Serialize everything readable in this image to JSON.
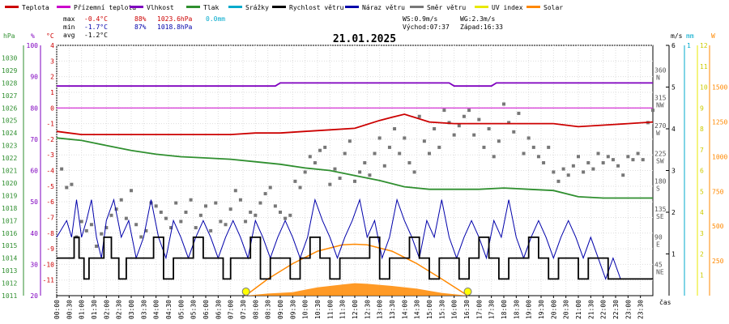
{
  "chart_data": {
    "type": "line",
    "title": "21.01.2025",
    "legend": [
      {
        "label": "Teplota",
        "color": "#cc0000"
      },
      {
        "label": "Přízemní teplota",
        "color": "#cc00cc"
      },
      {
        "label": "Vlhkost",
        "color": "#7f00bf"
      },
      {
        "label": "Tlak",
        "color": "#2f8f2f"
      },
      {
        "label": "Srážky",
        "color": "#00aacc"
      },
      {
        "label": "Rychlost větru",
        "color": "#000000"
      },
      {
        "label": "Náraz větru",
        "color": "#0000aa"
      },
      {
        "label": "Směr větru",
        "color": "#777777"
      },
      {
        "label": "UV index",
        "color": "#e8e800"
      },
      {
        "label": "Solar",
        "color": "#ff8800"
      }
    ],
    "stats": {
      "max": {
        "label": "max",
        "temp": "-0.4°C",
        "hum": "88%",
        "press": "1023.6hPa",
        "rain": "0.0mm"
      },
      "min": {
        "label": "min",
        "temp": "-1.7°C",
        "hum": "87%",
        "press": "1018.8hPa"
      },
      "avg": {
        "label": "avg",
        "temp": "-1.2°C"
      },
      "ws": "WS:0.9m/s",
      "wg": "WG:2.3m/s",
      "sunrise": "Východ:07:37",
      "sunset": "Západ:16:33"
    },
    "axis_units": {
      "hpa": "hPa",
      "pct": "%",
      "degc": "°C",
      "ms": "m/s",
      "mm": "mm",
      "w": "W",
      "time": "čas"
    },
    "axes": {
      "pressure": {
        "range": [
          1011,
          1031
        ],
        "ticks": [
          "1011",
          "1012",
          "1013",
          "1014",
          "1015",
          "1016",
          "1017",
          "1018",
          "1019",
          "1020",
          "1021",
          "1022",
          "1023",
          "1024",
          "1025",
          "1026",
          "1027",
          "1028",
          "1029",
          "1030"
        ]
      },
      "humidity": {
        "range": [
          20,
          100
        ],
        "ticks": [
          "20",
          "30",
          "40",
          "50",
          "60",
          "70",
          "80",
          "90",
          "100"
        ]
      },
      "temperature": {
        "range": [
          -12,
          4
        ],
        "ticks": [
          "-11",
          "-10",
          "-9",
          "-8",
          "-7",
          "-6",
          "-5",
          "-4",
          "-3",
          "-2",
          "-1",
          "0",
          "1",
          "2",
          "3",
          "4"
        ]
      },
      "wind_dir": {
        "ticks": [
          {
            "deg": "45",
            "dir": "NE",
            "v": 45
          },
          {
            "deg": "90",
            "dir": "E",
            "v": 90
          },
          {
            "deg": "135",
            "dir": "SE",
            "v": 135
          },
          {
            "deg": "180",
            "dir": "S",
            "v": 180
          },
          {
            "deg": "225",
            "dir": "SW",
            "v": 225
          },
          {
            "deg": "270",
            "dir": "W",
            "v": 270
          },
          {
            "deg": "315",
            "dir": "NW",
            "v": 315
          },
          {
            "deg": "360",
            "dir": "N",
            "v": 360
          }
        ]
      },
      "wind_speed": {
        "range": [
          0,
          6
        ],
        "ticks": [
          "1",
          "2",
          "3",
          "4",
          "5",
          "6"
        ]
      },
      "rain": {
        "ticks": [
          "1"
        ]
      },
      "uv": {
        "range": [
          0,
          12
        ],
        "ticks": [
          "1",
          "2",
          "3",
          "4",
          "5",
          "6",
          "7",
          "8",
          "9",
          "10",
          "11",
          "12"
        ]
      },
      "solar": {
        "range": [
          0,
          1800
        ],
        "ticks": [
          "250",
          "500",
          "750",
          "1000",
          "1250",
          "1500"
        ]
      }
    },
    "x_ticks": [
      "00:00",
      "00:30",
      "01:00",
      "01:30",
      "02:00",
      "02:30",
      "03:00",
      "03:30",
      "04:00",
      "04:30",
      "05:00",
      "05:30",
      "06:00",
      "06:30",
      "07:00",
      "07:30",
      "08:00",
      "08:30",
      "09:00",
      "09:30",
      "10:00",
      "10:30",
      "11:00",
      "11:30",
      "12:00",
      "12:30",
      "13:00",
      "13:30",
      "14:00",
      "14:30",
      "15:00",
      "15:30",
      "16:00",
      "16:30",
      "17:00",
      "17:30",
      "18:00",
      "18:30",
      "19:00",
      "19:30",
      "20:00",
      "20:30",
      "21:00",
      "21:30",
      "22:00",
      "22:30",
      "23:00",
      "23:30"
    ],
    "series": [
      {
        "name": "Teplota",
        "color": "#cc0000",
        "axis": "temperature",
        "x": [
          0,
          0.5,
          1,
          2,
          3,
          4,
          5,
          6,
          7,
          8,
          9,
          10,
          11,
          12,
          13,
          13.5,
          14,
          15,
          16,
          17,
          18,
          19,
          20,
          21,
          22,
          23,
          24
        ],
        "y": [
          -1.5,
          -1.6,
          -1.7,
          -1.7,
          -1.7,
          -1.7,
          -1.7,
          -1.7,
          -1.7,
          -1.6,
          -1.6,
          -1.5,
          -1.4,
          -1.3,
          -0.8,
          -0.6,
          -0.4,
          -0.9,
          -1.0,
          -1.0,
          -1.0,
          -1.0,
          -1.0,
          -1.2,
          -1.1,
          -1.0,
          -0.9
        ]
      },
      {
        "name": "Vlhkost",
        "color": "#7f00bf",
        "axis": "humidity",
        "x": [
          0,
          8.8,
          9.0,
          15.8,
          16,
          17.5,
          17.7,
          24
        ],
        "y": [
          87,
          87,
          88,
          88,
          87,
          87,
          88,
          88
        ]
      },
      {
        "name": "Tlak",
        "color": "#2f8f2f",
        "axis": "pressure",
        "x": [
          0,
          1,
          2,
          3,
          4,
          5,
          6,
          7,
          8,
          9,
          10,
          11,
          12,
          13,
          14,
          15,
          16,
          17,
          18,
          19,
          20,
          21,
          22,
          23,
          24
        ],
        "y": [
          1023.6,
          1023.4,
          1023.0,
          1022.6,
          1022.3,
          1022.1,
          1022.0,
          1021.9,
          1021.7,
          1021.5,
          1021.2,
          1021.0,
          1020.6,
          1020.2,
          1019.7,
          1019.5,
          1019.5,
          1019.5,
          1019.6,
          1019.5,
          1019.4,
          1018.9,
          1018.8,
          1018.8,
          1018.8
        ]
      },
      {
        "name": "Přízemní teplota",
        "color": "#cc00cc",
        "axis": "temperature",
        "x": [
          0,
          24
        ],
        "y": [
          0,
          0
        ]
      }
    ],
    "wind_dir_points": [
      [
        0.2,
        205
      ],
      [
        0.4,
        175
      ],
      [
        0.6,
        180
      ],
      [
        0.8,
        95
      ],
      [
        1.0,
        120
      ],
      [
        1.2,
        105
      ],
      [
        1.4,
        115
      ],
      [
        1.6,
        80
      ],
      [
        1.8,
        100
      ],
      [
        2.0,
        110
      ],
      [
        2.2,
        130
      ],
      [
        2.4,
        140
      ],
      [
        2.6,
        155
      ],
      [
        2.8,
        125
      ],
      [
        3.0,
        170
      ],
      [
        3.2,
        115
      ],
      [
        3.4,
        95
      ],
      [
        3.6,
        105
      ],
      [
        3.8,
        150
      ],
      [
        4.0,
        145
      ],
      [
        4.2,
        135
      ],
      [
        4.4,
        125
      ],
      [
        4.6,
        110
      ],
      [
        4.8,
        150
      ],
      [
        5.0,
        120
      ],
      [
        5.2,
        135
      ],
      [
        5.4,
        155
      ],
      [
        5.6,
        110
      ],
      [
        5.8,
        130
      ],
      [
        6.0,
        145
      ],
      [
        6.2,
        105
      ],
      [
        6.4,
        150
      ],
      [
        6.6,
        120
      ],
      [
        6.8,
        115
      ],
      [
        7.0,
        140
      ],
      [
        7.2,
        170
      ],
      [
        7.4,
        155
      ],
      [
        7.6,
        120
      ],
      [
        7.8,
        135
      ],
      [
        8.0,
        130
      ],
      [
        8.2,
        150
      ],
      [
        8.4,
        165
      ],
      [
        8.6,
        175
      ],
      [
        8.8,
        145
      ],
      [
        9.0,
        135
      ],
      [
        9.2,
        125
      ],
      [
        9.4,
        130
      ],
      [
        9.6,
        185
      ],
      [
        9.8,
        175
      ],
      [
        10.0,
        200
      ],
      [
        10.2,
        225
      ],
      [
        10.4,
        215
      ],
      [
        10.6,
        235
      ],
      [
        10.8,
        240
      ],
      [
        11.0,
        180
      ],
      [
        11.2,
        205
      ],
      [
        11.4,
        190
      ],
      [
        11.6,
        230
      ],
      [
        11.8,
        250
      ],
      [
        12.0,
        185
      ],
      [
        12.2,
        200
      ],
      [
        12.4,
        215
      ],
      [
        12.6,
        195
      ],
      [
        12.8,
        230
      ],
      [
        13.0,
        255
      ],
      [
        13.2,
        210
      ],
      [
        13.4,
        240
      ],
      [
        13.6,
        270
      ],
      [
        13.8,
        230
      ],
      [
        14.0,
        255
      ],
      [
        14.2,
        215
      ],
      [
        14.4,
        200
      ],
      [
        14.6,
        290
      ],
      [
        14.8,
        250
      ],
      [
        15.0,
        230
      ],
      [
        15.2,
        270
      ],
      [
        15.4,
        240
      ],
      [
        15.6,
        300
      ],
      [
        15.8,
        280
      ],
      [
        16.0,
        260
      ],
      [
        16.2,
        275
      ],
      [
        16.4,
        290
      ],
      [
        16.6,
        300
      ],
      [
        16.8,
        260
      ],
      [
        17.0,
        285
      ],
      [
        17.2,
        240
      ],
      [
        17.4,
        270
      ],
      [
        17.6,
        225
      ],
      [
        17.8,
        250
      ],
      [
        18.0,
        310
      ],
      [
        18.2,
        280
      ],
      [
        18.4,
        265
      ],
      [
        18.6,
        295
      ],
      [
        18.8,
        230
      ],
      [
        19.0,
        255
      ],
      [
        19.2,
        240
      ],
      [
        19.4,
        225
      ],
      [
        19.6,
        215
      ],
      [
        19.8,
        240
      ],
      [
        20.0,
        200
      ],
      [
        20.2,
        185
      ],
      [
        20.4,
        205
      ],
      [
        20.6,
        195
      ],
      [
        20.8,
        210
      ],
      [
        21.0,
        225
      ],
      [
        21.2,
        200
      ],
      [
        21.4,
        215
      ],
      [
        21.6,
        205
      ],
      [
        21.8,
        230
      ],
      [
        22.0,
        215
      ],
      [
        22.2,
        225
      ],
      [
        22.4,
        220
      ],
      [
        22.6,
        210
      ],
      [
        22.8,
        195
      ],
      [
        23.0,
        225
      ],
      [
        23.2,
        220
      ],
      [
        23.4,
        230
      ],
      [
        23.6,
        220
      ],
      [
        23.8,
        280
      ],
      [
        24.0,
        300
      ]
    ],
    "wind_speed": {
      "x": [
        0,
        0.5,
        0.7,
        0.9,
        1.1,
        1.3,
        1.6,
        1.9,
        2.2,
        2.5,
        2.8,
        3.1,
        3.5,
        3.9,
        4.3,
        4.7,
        5.1,
        5.5,
        5.9,
        6.3,
        6.7,
        7.0,
        7.4,
        7.8,
        8.2,
        8.6,
        9.0,
        9.4,
        9.8,
        10.2,
        10.6,
        11.0,
        11.4,
        11.8,
        12.2,
        12.6,
        13.0,
        13.4,
        13.8,
        14.2,
        14.6,
        15.0,
        15.4,
        15.8,
        16.2,
        16.6,
        17.0,
        17.4,
        17.8,
        18.2,
        18.6,
        19.0,
        19.4,
        19.8,
        20.2,
        20.6,
        21.0,
        21.4,
        21.8,
        22.2,
        22.6,
        23.0,
        23.4,
        23.8,
        24
      ],
      "y": [
        0.9,
        0.9,
        1.4,
        0.9,
        0.4,
        0.9,
        0.9,
        1.4,
        0.9,
        0.4,
        0.9,
        0.9,
        0.9,
        1.4,
        0.4,
        0.9,
        0.9,
        1.4,
        0.9,
        0.9,
        0.4,
        0.9,
        0.9,
        1.4,
        0.4,
        0.9,
        0.9,
        0.4,
        0.9,
        1.4,
        0.9,
        0.4,
        0.9,
        0.9,
        0.9,
        1.4,
        0.4,
        0.9,
        0.9,
        1.4,
        0.9,
        0.4,
        0.9,
        0.9,
        0.4,
        0.9,
        1.4,
        0.9,
        0.4,
        0.9,
        0.9,
        1.4,
        0.9,
        0.4,
        0.9,
        0.9,
        0.4,
        0.9,
        0.9,
        0.4,
        0.4,
        0.4,
        0.4,
        0.4,
        0.4
      ]
    },
    "wind_gust": {
      "x": [
        0,
        0.4,
        0.6,
        0.8,
        1.0,
        1.2,
        1.4,
        1.6,
        1.8,
        2.0,
        2.3,
        2.6,
        2.9,
        3.2,
        3.5,
        3.8,
        4.1,
        4.4,
        4.7,
        5.0,
        5.3,
        5.6,
        5.9,
        6.2,
        6.5,
        6.8,
        7.1,
        7.4,
        7.7,
        8.0,
        8.3,
        8.6,
        8.9,
        9.2,
        9.5,
        9.8,
        10.1,
        10.4,
        10.7,
        11.0,
        11.3,
        11.6,
        11.9,
        12.2,
        12.5,
        12.8,
        13.1,
        13.4,
        13.7,
        14.0,
        14.3,
        14.6,
        14.9,
        15.2,
        15.5,
        15.8,
        16.1,
        16.4,
        16.7,
        17.0,
        17.3,
        17.6,
        17.9,
        18.2,
        18.5,
        18.8,
        19.1,
        19.4,
        19.7,
        20.0,
        20.3,
        20.6,
        20.9,
        21.2,
        21.5,
        21.8,
        22.1,
        22.4,
        22.7,
        23.0,
        23.3,
        23.6,
        24
      ],
      "y": [
        1.4,
        1.8,
        1.4,
        2.3,
        1.4,
        1.8,
        2.3,
        1.4,
        0.9,
        1.8,
        2.3,
        1.4,
        1.8,
        0.9,
        1.4,
        2.3,
        1.4,
        0.9,
        1.8,
        1.4,
        0.9,
        1.4,
        1.8,
        1.4,
        0.9,
        1.4,
        1.8,
        1.4,
        0.9,
        1.8,
        1.4,
        0.9,
        1.4,
        1.8,
        1.4,
        0.9,
        1.4,
        2.3,
        1.8,
        1.4,
        0.9,
        1.4,
        1.8,
        2.3,
        1.4,
        1.8,
        0.9,
        1.4,
        2.3,
        1.8,
        1.4,
        0.9,
        1.8,
        1.4,
        2.3,
        1.4,
        0.9,
        1.4,
        1.8,
        1.4,
        0.9,
        1.8,
        1.4,
        2.3,
        1.4,
        0.9,
        1.4,
        1.8,
        1.4,
        0.9,
        1.4,
        1.8,
        1.4,
        0.9,
        1.4,
        0.9,
        0.4,
        0.9,
        0.4,
        0.4,
        0.4,
        0.4,
        0.4
      ]
    },
    "solar": {
      "x": [
        7.6,
        8.5,
        9.5,
        10.5,
        11.5,
        12.0,
        12.5,
        13.5,
        14.5,
        15.5,
        16.55
      ],
      "theoretical": [
        0,
        120,
        230,
        320,
        365,
        370,
        365,
        320,
        230,
        120,
        0
      ],
      "measured": [
        0,
        15,
        25,
        60,
        80,
        90,
        85,
        70,
        50,
        20,
        0
      ]
    },
    "sun_markers": [
      7.62,
      16.55
    ],
    "grid": true
  }
}
